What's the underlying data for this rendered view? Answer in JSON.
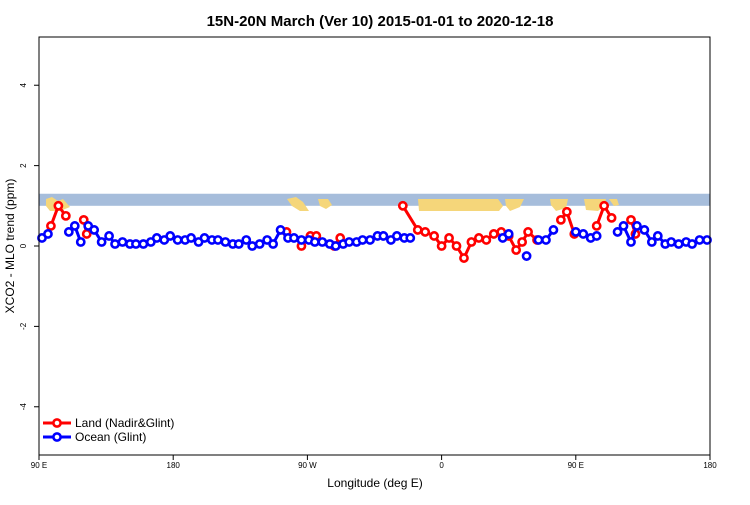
{
  "chart_data": {
    "type": "line",
    "title": "15N-20N March (Ver 10)   2015-01-01 to 2020-12-18",
    "xlabel": "Longitude (deg E)",
    "ylabel": "XCO2 - MLO trend (ppm)",
    "x_ticks": [
      {
        "value": 90,
        "label": "90 E"
      },
      {
        "value": 180,
        "label": "180"
      },
      {
        "value": 270,
        "label": "90 W"
      },
      {
        "value": 360,
        "label": "0"
      },
      {
        "value": 450,
        "label": "90 E"
      },
      {
        "value": 540,
        "label": "180"
      }
    ],
    "y_ticks": [
      -4,
      -2,
      0,
      2,
      4
    ],
    "xlim": [
      90,
      540
    ],
    "ylim": [
      -5.2,
      5.2
    ],
    "grid": false,
    "legend_position": "bottom-left",
    "colors": {
      "land": "#ff0000",
      "ocean": "#0000ff",
      "map_ocean": "#a6bddb",
      "map_land": "#f5d67a"
    },
    "map_strip": {
      "y_min": 1.0,
      "y_max": 1.3
    },
    "series": [
      {
        "name": "Land (Nadir&Glint)",
        "color": "#ff0000",
        "segments": [
          [
            [
              98,
              0.5
            ],
            [
              103,
              1.0
            ],
            [
              108,
              0.75
            ]
          ],
          [
            [
              120,
              0.65
            ],
            [
              122,
              0.3
            ]
          ],
          [
            [
              256,
              0.35
            ]
          ],
          [
            [
              266,
              0.0
            ],
            [
              272,
              0.25
            ],
            [
              276,
              0.25
            ]
          ],
          [
            [
              288,
              0.0
            ],
            [
              292,
              0.2
            ]
          ],
          [
            [
              334,
              1.0
            ],
            [
              344,
              0.4
            ],
            [
              349,
              0.35
            ],
            [
              355,
              0.25
            ],
            [
              360,
              0.0
            ],
            [
              365,
              0.2
            ],
            [
              370,
              0.0
            ],
            [
              375,
              -0.3
            ],
            [
              380,
              0.1
            ],
            [
              385,
              0.2
            ],
            [
              390,
              0.15
            ],
            [
              395,
              0.3
            ],
            [
              400,
              0.35
            ],
            [
              405,
              0.25
            ],
            [
              410,
              -0.1
            ],
            [
              414,
              0.1
            ],
            [
              418,
              0.35
            ],
            [
              424,
              0.15
            ]
          ],
          [
            [
              440,
              0.65
            ],
            [
              444,
              0.85
            ],
            [
              449,
              0.3
            ]
          ],
          [
            [
              464,
              0.5
            ],
            [
              469,
              1.0
            ],
            [
              474,
              0.7
            ]
          ],
          [
            [
              487,
              0.65
            ],
            [
              490,
              0.3
            ]
          ]
        ]
      },
      {
        "name": "Ocean (Glint)",
        "color": "#0000ff",
        "segments": [
          [
            [
              92,
              0.2
            ],
            [
              96,
              0.3
            ]
          ],
          [
            [
              110,
              0.35
            ],
            [
              114,
              0.5
            ],
            [
              118,
              0.1
            ]
          ],
          [
            [
              123,
              0.5
            ],
            [
              127,
              0.4
            ],
            [
              132,
              0.1
            ],
            [
              137,
              0.25
            ],
            [
              141,
              0.05
            ],
            [
              146,
              0.1
            ],
            [
              151,
              0.05
            ],
            [
              155,
              0.05
            ],
            [
              160,
              0.05
            ],
            [
              165,
              0.1
            ],
            [
              169,
              0.2
            ],
            [
              174,
              0.15
            ],
            [
              178,
              0.25
            ],
            [
              183,
              0.15
            ],
            [
              188,
              0.15
            ],
            [
              192,
              0.2
            ],
            [
              197,
              0.1
            ],
            [
              201,
              0.2
            ],
            [
              206,
              0.15
            ],
            [
              210,
              0.15
            ],
            [
              215,
              0.1
            ],
            [
              220,
              0.05
            ],
            [
              224,
              0.05
            ],
            [
              229,
              0.15
            ],
            [
              233,
              0.0
            ],
            [
              238,
              0.05
            ],
            [
              243,
              0.15
            ],
            [
              247,
              0.05
            ],
            [
              252,
              0.4
            ],
            [
              257,
              0.2
            ],
            [
              261,
              0.2
            ],
            [
              266,
              0.15
            ],
            [
              271,
              0.15
            ],
            [
              275,
              0.1
            ],
            [
              280,
              0.1
            ],
            [
              285,
              0.05
            ],
            [
              289,
              0.0
            ],
            [
              294,
              0.05
            ],
            [
              298,
              0.1
            ],
            [
              303,
              0.1
            ],
            [
              307,
              0.15
            ],
            [
              312,
              0.15
            ],
            [
              317,
              0.25
            ],
            [
              321,
              0.25
            ],
            [
              326,
              0.15
            ],
            [
              330,
              0.25
            ],
            [
              335,
              0.2
            ],
            [
              339,
              0.2
            ]
          ],
          [
            [
              401,
              0.2
            ],
            [
              405,
              0.3
            ]
          ],
          [
            [
              417,
              -0.25
            ]
          ],
          [
            [
              425,
              0.15
            ],
            [
              430,
              0.15
            ],
            [
              435,
              0.4
            ]
          ],
          [
            [
              450,
              0.35
            ],
            [
              455,
              0.3
            ],
            [
              460,
              0.2
            ],
            [
              464,
              0.25
            ]
          ],
          [
            [
              478,
              0.35
            ],
            [
              482,
              0.5
            ],
            [
              487,
              0.1
            ],
            [
              491,
              0.5
            ],
            [
              496,
              0.4
            ],
            [
              501,
              0.1
            ],
            [
              505,
              0.25
            ],
            [
              510,
              0.05
            ],
            [
              514,
              0.1
            ],
            [
              519,
              0.05
            ],
            [
              524,
              0.1
            ],
            [
              528,
              0.05
            ],
            [
              533,
              0.15
            ],
            [
              538,
              0.15
            ]
          ]
        ]
      }
    ]
  }
}
